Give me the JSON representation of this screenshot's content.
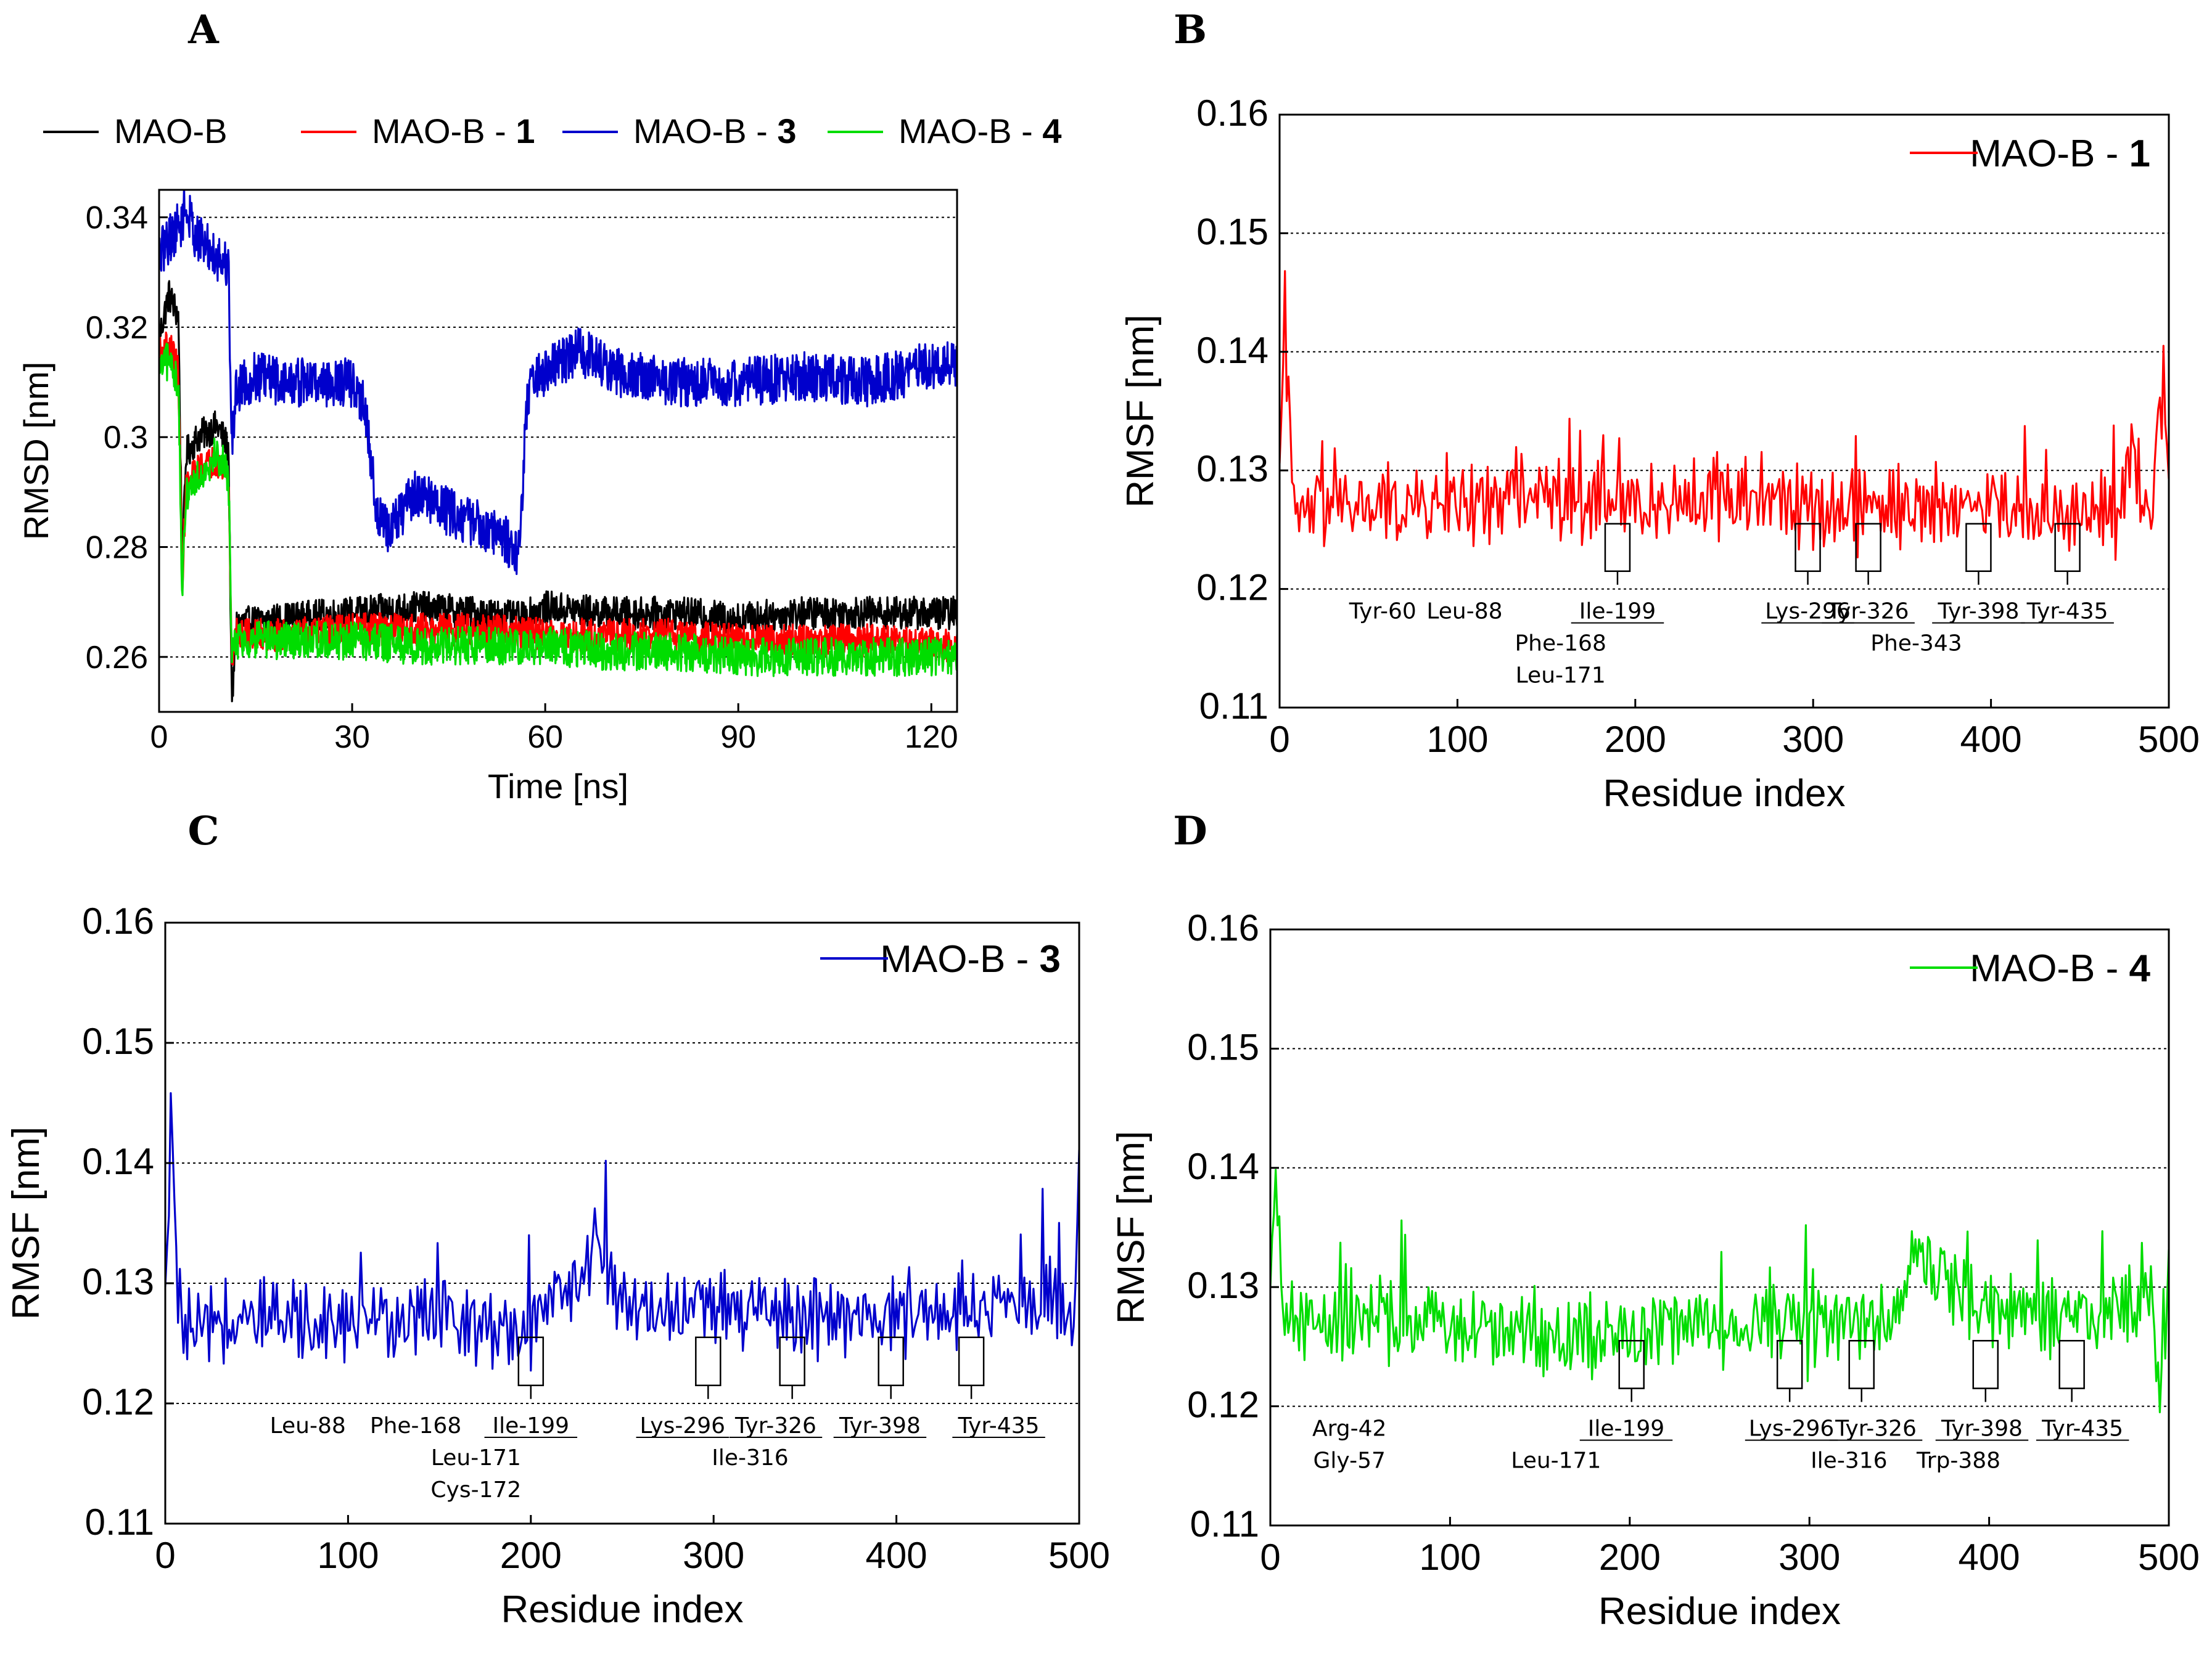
{
  "chart_data": [
    {
      "id": "A",
      "type": "line",
      "panel_label": "A",
      "title": "",
      "xlabel": "Time [ns]",
      "ylabel": "RMSD [nm]",
      "xlim": [
        0,
        124
      ],
      "ylim": [
        0.25,
        0.345
      ],
      "xticks": [
        0,
        30,
        60,
        90,
        120
      ],
      "yticks": [
        0.26,
        0.28,
        0.3,
        0.32,
        0.34
      ],
      "ytick_labels": [
        "0.26",
        "0.28",
        "0.3",
        "0.32",
        "0.34"
      ],
      "grid": "horizontal-dotted",
      "legend_position": "top",
      "series": [
        {
          "name": "MAO-B",
          "name_prefix": "MAO-B",
          "name_suffix": "",
          "color": "#000000",
          "x": [
            0,
            1.5,
            3,
            3.6,
            4.2,
            6,
            9,
            10.8,
            11.3,
            12,
            20,
            30,
            40,
            50,
            56,
            60,
            70,
            80,
            90,
            100,
            110,
            124
          ],
          "values": [
            0.318,
            0.326,
            0.322,
            0.276,
            0.297,
            0.3,
            0.302,
            0.298,
            0.25,
            0.266,
            0.267,
            0.268,
            0.269,
            0.268,
            0.267,
            0.269,
            0.268,
            0.268,
            0.267,
            0.268,
            0.268,
            0.268
          ],
          "noise": 0.003
        },
        {
          "name": "MAO-B - 1",
          "name_prefix": "MAO-B - ",
          "name_suffix": "1",
          "color": "#ff0000",
          "x": [
            0,
            1.5,
            3,
            3.6,
            4.2,
            6,
            9,
            10.8,
            11.3,
            12,
            20,
            30,
            40,
            50,
            60,
            70,
            80,
            90,
            100,
            110,
            124
          ],
          "values": [
            0.315,
            0.317,
            0.312,
            0.274,
            0.291,
            0.294,
            0.296,
            0.292,
            0.26,
            0.264,
            0.264,
            0.265,
            0.265,
            0.265,
            0.264,
            0.264,
            0.264,
            0.263,
            0.263,
            0.263,
            0.262
          ],
          "noise": 0.003
        },
        {
          "name": "MAO-B - 3",
          "name_prefix": "MAO-B - ",
          "name_suffix": "3",
          "color": "#0000cc",
          "x": [
            0,
            1.5,
            3.5,
            4,
            6,
            9,
            10.8,
            11.3,
            12,
            15,
            20,
            25,
            30,
            32,
            34,
            36,
            38,
            40,
            44,
            48,
            52,
            56,
            57,
            58,
            63,
            65,
            70,
            80,
            90,
            100,
            110,
            120,
            124
          ],
          "values": [
            0.333,
            0.336,
            0.339,
            0.342,
            0.336,
            0.333,
            0.331,
            0.298,
            0.309,
            0.311,
            0.31,
            0.31,
            0.31,
            0.305,
            0.285,
            0.283,
            0.287,
            0.29,
            0.287,
            0.285,
            0.283,
            0.279,
            0.305,
            0.31,
            0.314,
            0.316,
            0.312,
            0.31,
            0.31,
            0.311,
            0.31,
            0.313,
            0.313
          ],
          "noise": 0.0045
        },
        {
          "name": "MAO-B - 4",
          "name_prefix": "MAO-B - ",
          "name_suffix": "4",
          "color": "#00dd00",
          "x": [
            0,
            1.5,
            3,
            3.6,
            4.2,
            6,
            9,
            10.8,
            11.3,
            12,
            20,
            30,
            40,
            50,
            60,
            70,
            80,
            90,
            100,
            110,
            124
          ],
          "values": [
            0.312,
            0.314,
            0.31,
            0.27,
            0.29,
            0.293,
            0.297,
            0.293,
            0.26,
            0.263,
            0.263,
            0.263,
            0.262,
            0.262,
            0.262,
            0.261,
            0.261,
            0.26,
            0.26,
            0.26,
            0.26
          ],
          "noise": 0.0035
        }
      ]
    },
    {
      "id": "B",
      "type": "line",
      "panel_label": "B",
      "title": "",
      "xlabel": "Residue index",
      "ylabel": "RMSF [nm]",
      "xlim": [
        0,
        500
      ],
      "ylim": [
        0.11,
        0.16
      ],
      "xticks": [
        0,
        100,
        200,
        300,
        400,
        500
      ],
      "yticks": [
        0.11,
        0.12,
        0.13,
        0.14,
        0.15,
        0.16
      ],
      "ytick_labels": [
        "0.11",
        "0.12",
        "0.13",
        "0.14",
        "0.15",
        "0.16"
      ],
      "grid": "horizontal-dotted",
      "legend_position": "top-right",
      "series": [
        {
          "name": "MAO-B - 1",
          "name_prefix": "MAO-B - ",
          "name_suffix": "1",
          "color": "#ff0000",
          "x": [
            0,
            3,
            8,
            20,
            60,
            100,
            140,
            200,
            250,
            300,
            350,
            400,
            440,
            470,
            480,
            490,
            497,
            500
          ],
          "values": [
            0.128,
            0.142,
            0.126,
            0.127,
            0.127,
            0.127,
            0.128,
            0.127,
            0.128,
            0.127,
            0.127,
            0.127,
            0.126,
            0.127,
            0.131,
            0.127,
            0.137,
            0.13
          ],
          "noise": 0.0035
        }
      ],
      "binding_site_boxes_x": [
        190,
        297,
        331,
        393,
        443
      ],
      "annotations": [
        {
          "text": "Tyr-60",
          "x": 58,
          "row": 1,
          "underline": false
        },
        {
          "text": "Leu-88",
          "x": 104,
          "row": 1,
          "underline": false
        },
        {
          "text": "Ile-199",
          "x": 190,
          "row": 1,
          "underline": true
        },
        {
          "text": "Lys-296",
          "x": 297,
          "row": 1,
          "underline": true
        },
        {
          "text": "Tyr-326",
          "x": 331,
          "row": 1,
          "underline": true
        },
        {
          "text": "Tyr-398",
          "x": 393,
          "row": 1,
          "underline": true
        },
        {
          "text": "Tyr-435",
          "x": 443,
          "row": 1,
          "underline": true
        },
        {
          "text": "Phe-168",
          "x": 158,
          "row": 2,
          "underline": false
        },
        {
          "text": "Phe-343",
          "x": 358,
          "row": 2,
          "underline": false
        },
        {
          "text": "Leu-171",
          "x": 158,
          "row": 3,
          "underline": false
        }
      ]
    },
    {
      "id": "C",
      "type": "line",
      "panel_label": "C",
      "title": "",
      "xlabel": "Residue index",
      "ylabel": "RMSF [nm]",
      "xlim": [
        0,
        500
      ],
      "ylim": [
        0.11,
        0.16
      ],
      "xticks": [
        0,
        100,
        200,
        300,
        400,
        500
      ],
      "yticks": [
        0.11,
        0.12,
        0.13,
        0.14,
        0.15,
        0.16
      ],
      "ytick_labels": [
        "0.11",
        "0.12",
        "0.13",
        "0.14",
        "0.15",
        "0.16"
      ],
      "grid": "horizontal-dotted",
      "legend_position": "top-right",
      "series": [
        {
          "name": "MAO-B - 3",
          "name_prefix": "MAO-B - ",
          "name_suffix": "3",
          "color": "#0000cc",
          "x": [
            0,
            3,
            8,
            20,
            60,
            100,
            150,
            200,
            240,
            250,
            300,
            350,
            400,
            450,
            490,
            497,
            500
          ],
          "values": [
            0.128,
            0.143,
            0.126,
            0.126,
            0.127,
            0.127,
            0.127,
            0.126,
            0.133,
            0.128,
            0.128,
            0.127,
            0.127,
            0.128,
            0.129,
            0.126,
            0.14
          ],
          "noise": 0.0035
        }
      ],
      "binding_site_boxes_x": [
        200,
        297,
        343,
        397,
        441
      ],
      "annotations": [
        {
          "text": "Leu-88",
          "x": 78,
          "row": 1,
          "underline": false
        },
        {
          "text": "Phe-168",
          "x": 137,
          "row": 1,
          "underline": false
        },
        {
          "text": "Ile-199",
          "x": 200,
          "row": 1,
          "underline": true
        },
        {
          "text": "Lys-296",
          "x": 283,
          "row": 1,
          "underline": true
        },
        {
          "text": "Tyr-326",
          "x": 334,
          "row": 1,
          "underline": true
        },
        {
          "text": "Tyr-398",
          "x": 391,
          "row": 1,
          "underline": true
        },
        {
          "text": "Tyr-435",
          "x": 456,
          "row": 1,
          "underline": true
        },
        {
          "text": "Leu-171",
          "x": 170,
          "row": 2,
          "underline": false
        },
        {
          "text": "Ile-316",
          "x": 320,
          "row": 2,
          "underline": false
        },
        {
          "text": "Cys-172",
          "x": 170,
          "row": 3,
          "underline": false
        }
      ]
    },
    {
      "id": "D",
      "type": "line",
      "panel_label": "D",
      "title": "",
      "xlabel": "Residue index",
      "ylabel": "RMSF [nm]",
      "xlim": [
        0,
        500
      ],
      "ylim": [
        0.11,
        0.16
      ],
      "xticks": [
        0,
        100,
        200,
        300,
        400,
        500
      ],
      "yticks": [
        0.11,
        0.12,
        0.13,
        0.14,
        0.15,
        0.16
      ],
      "ytick_labels": [
        "0.11",
        "0.12",
        "0.13",
        "0.14",
        "0.15",
        "0.16"
      ],
      "grid": "horizontal-dotted",
      "legend_position": "top-right",
      "series": [
        {
          "name": "MAO-B - 4",
          "name_prefix": "MAO-B - ",
          "name_suffix": "4",
          "color": "#00dd00",
          "x": [
            0,
            3,
            8,
            20,
            60,
            100,
            150,
            200,
            250,
            300,
            350,
            355,
            400,
            450,
            490,
            495,
            500
          ],
          "values": [
            0.128,
            0.139,
            0.127,
            0.127,
            0.127,
            0.127,
            0.126,
            0.126,
            0.127,
            0.127,
            0.127,
            0.133,
            0.128,
            0.127,
            0.129,
            0.12,
            0.132
          ],
          "noise": 0.0035
        }
      ],
      "binding_site_boxes_x": [
        201,
        289,
        329,
        398,
        446
      ],
      "annotations": [
        {
          "text": "Arg-42",
          "x": 44,
          "row": 1,
          "underline": false
        },
        {
          "text": "Ile-199",
          "x": 198,
          "row": 1,
          "underline": true
        },
        {
          "text": "Lys-296",
          "x": 290,
          "row": 1,
          "underline": true
        },
        {
          "text": "Tyr-326",
          "x": 337,
          "row": 1,
          "underline": true
        },
        {
          "text": "Tyr-398",
          "x": 396,
          "row": 1,
          "underline": true
        },
        {
          "text": "Tyr-435",
          "x": 452,
          "row": 1,
          "underline": true
        },
        {
          "text": "Gly-57",
          "x": 44,
          "row": 2,
          "underline": false
        },
        {
          "text": "Leu-171",
          "x": 159,
          "row": 2,
          "underline": false
        },
        {
          "text": "Ile-316",
          "x": 322,
          "row": 2,
          "underline": false
        },
        {
          "text": "Trp-388",
          "x": 383,
          "row": 2,
          "underline": false
        }
      ]
    }
  ]
}
